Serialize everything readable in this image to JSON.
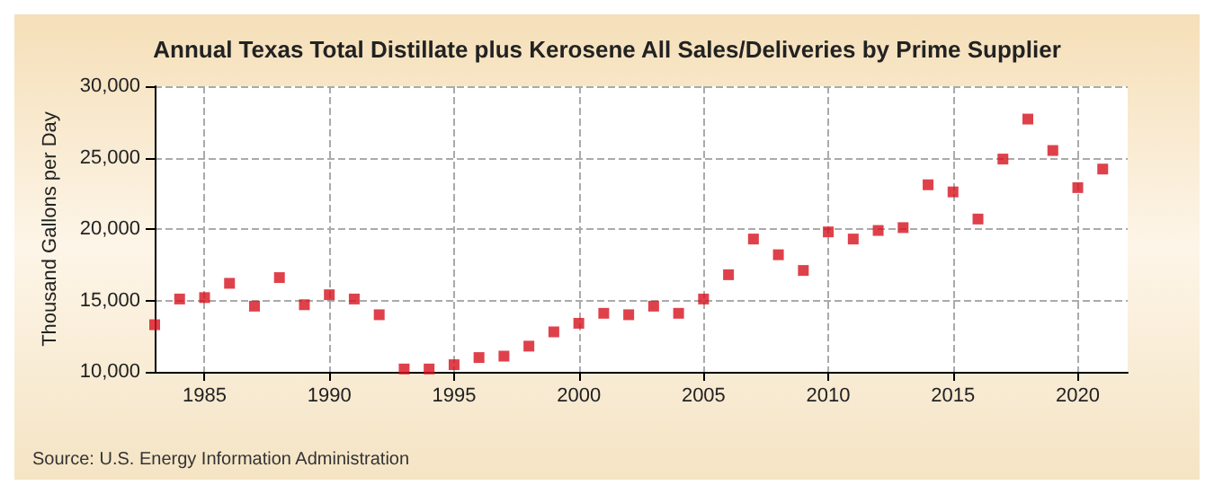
{
  "chart_data": {
    "type": "scatter",
    "title": "Annual Texas Total Distillate plus Kerosene All Sales/Deliveries by Prime Supplier",
    "ylabel": "Thousand Gallons per Day",
    "annotations": [
      "Source: U.S. Energy Information Administration"
    ],
    "x": [
      1983,
      1984,
      1985,
      1986,
      1987,
      1988,
      1989,
      1990,
      1991,
      1992,
      1993,
      1994,
      1995,
      1996,
      1997,
      1998,
      1999,
      2000,
      2001,
      2002,
      2003,
      2004,
      2005,
      2006,
      2007,
      2008,
      2009,
      2010,
      2011,
      2012,
      2013,
      2014,
      2015,
      2016,
      2017,
      2018,
      2019,
      2020,
      2021
    ],
    "series": [
      {
        "color": "#d7121e",
        "values": [
          13300,
          15100,
          15200,
          16200,
          14600,
          16600,
          14700,
          15400,
          15100,
          14000,
          10200,
          10200,
          10500,
          11000,
          11100,
          11800,
          12800,
          13400,
          14100,
          14000,
          14600,
          14100,
          15100,
          16800,
          19300,
          18200,
          17100,
          19800,
          19300,
          19900,
          20100,
          23100,
          22600,
          20700,
          24900,
          27700,
          25500,
          22900,
          24200
        ]
      }
    ],
    "xlim": [
      1983,
      2022
    ],
    "xticks": [
      1985,
      1990,
      1995,
      2000,
      2005,
      2010,
      2015,
      2020
    ],
    "ylim": [
      10000,
      30000
    ],
    "yticks": [
      {
        "value": 10000,
        "label": "10,000"
      },
      {
        "value": 15000,
        "label": "15,000"
      },
      {
        "value": 20000,
        "label": "20,000"
      },
      {
        "value": 25000,
        "label": "25,000"
      },
      {
        "value": 30000,
        "label": "30,000"
      }
    ],
    "grid": true,
    "marker": "square"
  }
}
